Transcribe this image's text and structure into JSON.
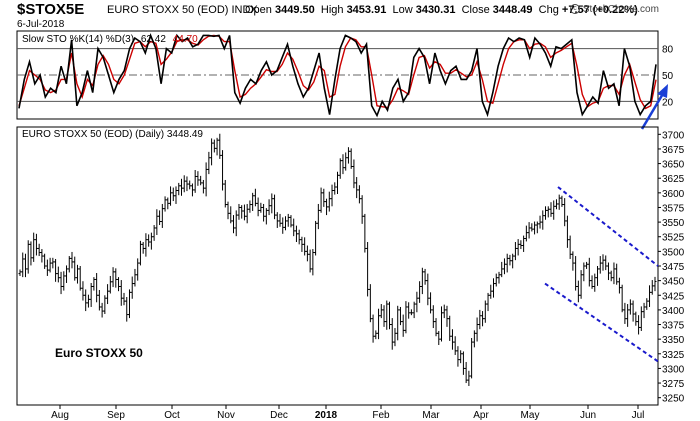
{
  "header": {
    "symbol": "$STOX5E",
    "name": "EURO STOXX 50 (EOD) INDX",
    "date": "6-Jul-2018",
    "open_label": "Open",
    "open": "3449.50",
    "high_label": "High",
    "high": "3453.91",
    "low_label": "Low",
    "low": "3430.31",
    "close_label": "Close",
    "close": "3448.49",
    "chg_label": "Chg",
    "chg": "+7.57 (+0.22%)",
    "watermark": "StockCharts.com"
  },
  "stoch_panel": {
    "legend_prefix": "Slow STO %K(14) %D(3)",
    "k_value": "62.42",
    "d_value": "44.70",
    "levels": [
      20,
      50,
      80
    ],
    "ylim": [
      0,
      100
    ],
    "colors": {
      "k": "#000000",
      "d": "#cc0000",
      "arrow": "#1a3fd6"
    }
  },
  "price_panel": {
    "legend": "EURO STOXX 50 (EOD) (Daily) 3448.49",
    "annotation": "Euro STOXX 50",
    "ylim": [
      3237.5,
      3712.5
    ],
    "yticks": [
      3250,
      3275,
      3300,
      3325,
      3350,
      3375,
      3400,
      3425,
      3450,
      3475,
      3500,
      3525,
      3550,
      3575,
      3600,
      3625,
      3650,
      3675,
      3700
    ],
    "months": [
      "Aug",
      "Sep",
      "Oct",
      "Nov",
      "Dec",
      "2018",
      "Feb",
      "Mar",
      "Apr",
      "May",
      "Jun",
      "Jul"
    ],
    "channel_color": "#1a1acc"
  },
  "chart_data": [
    {
      "type": "line",
      "title": "Slow STO %K(14) %D(3)",
      "ylim": [
        0,
        100
      ],
      "levels": [
        20,
        50,
        80
      ],
      "series": [
        {
          "name": "%K(14)",
          "values": [
            12,
            45,
            65,
            40,
            50,
            25,
            35,
            30,
            60,
            40,
            90,
            15,
            30,
            55,
            30,
            80,
            70,
            50,
            30,
            45,
            55,
            80,
            92,
            88,
            75,
            95,
            80,
            40,
            80,
            75,
            95,
            88,
            92,
            82,
            85,
            95,
            95,
            94,
            95,
            80,
            95,
            30,
            18,
            35,
            45,
            40,
            55,
            65,
            50,
            55,
            70,
            85,
            60,
            40,
            25,
            35,
            55,
            75,
            35,
            5,
            45,
            80,
            95,
            92,
            88,
            75,
            85,
            15,
            4,
            20,
            10,
            35,
            45,
            20,
            30,
            70,
            80,
            70,
            40,
            75,
            55,
            40,
            55,
            60,
            45,
            45,
            55,
            80,
            20,
            5,
            30,
            60,
            80,
            92,
            88,
            92,
            90,
            70,
            92,
            85,
            75,
            60,
            82,
            80,
            85,
            90,
            30,
            5,
            15,
            25,
            18,
            55,
            35,
            40,
            15,
            80,
            60,
            20,
            5,
            15,
            20,
            62
          ]
        },
        {
          "name": "%D(3)",
          "values": [
            15,
            35,
            55,
            50,
            45,
            33,
            30,
            33,
            45,
            45,
            75,
            40,
            25,
            45,
            38,
            62,
            72,
            62,
            45,
            40,
            50,
            68,
            86,
            88,
            82,
            88,
            86,
            62,
            68,
            76,
            88,
            90,
            90,
            86,
            84,
            90,
            94,
            95,
            94,
            88,
            88,
            55,
            25,
            28,
            35,
            40,
            48,
            56,
            54,
            54,
            62,
            75,
            68,
            54,
            38,
            33,
            42,
            60,
            55,
            25,
            28,
            60,
            82,
            92,
            90,
            82,
            82,
            50,
            15,
            14,
            13,
            22,
            35,
            32,
            28,
            50,
            70,
            72,
            58,
            65,
            62,
            52,
            52,
            56,
            52,
            48,
            50,
            65,
            45,
            20,
            18,
            40,
            62,
            80,
            88,
            90,
            90,
            80,
            85,
            86,
            82,
            70,
            75,
            78,
            82,
            86,
            60,
            28,
            14,
            18,
            20,
            35,
            38,
            38,
            28,
            50,
            62,
            42,
            22,
            12,
            15,
            44.7
          ]
        }
      ]
    },
    {
      "type": "bar",
      "title": "EURO STOXX 50 (EOD) (Daily) 3448.49",
      "subtitle": "OHLC bars",
      "ylim": [
        3237.5,
        3712.5
      ],
      "x": [
        "Aug",
        "Sep",
        "Oct",
        "Nov",
        "Dec",
        "2018",
        "Feb",
        "Mar",
        "Apr",
        "May",
        "Jun",
        "Jul"
      ],
      "closes": [
        3465,
        3487,
        3470,
        3512,
        3489,
        3520,
        3505,
        3498,
        3492,
        3475,
        3468,
        3480,
        3482,
        3462,
        3455,
        3440,
        3458,
        3470,
        3488,
        3482,
        3455,
        3470,
        3437,
        3425,
        3412,
        3418,
        3440,
        3452,
        3425,
        3405,
        3398,
        3420,
        3432,
        3448,
        3465,
        3452,
        3440,
        3420,
        3415,
        3392,
        3430,
        3445,
        3460,
        3480,
        3512,
        3505,
        3520,
        3516,
        3525,
        3540,
        3560,
        3551,
        3573,
        3588,
        3582,
        3600,
        3595,
        3604,
        3612,
        3608,
        3620,
        3615,
        3612,
        3605,
        3628,
        3622,
        3617,
        3608,
        3640,
        3660,
        3685,
        3676,
        3690,
        3664,
        3615,
        3580,
        3565,
        3552,
        3540,
        3562,
        3575,
        3569,
        3560,
        3572,
        3580,
        3595,
        3582,
        3570,
        3575,
        3560,
        3570,
        3578,
        3590,
        3562,
        3552,
        3548,
        3541,
        3552,
        3558,
        3545,
        3535,
        3530,
        3520,
        3512,
        3500,
        3495,
        3470,
        3498,
        3548,
        3570,
        3600,
        3585,
        3576,
        3590,
        3604,
        3610,
        3630,
        3655,
        3643,
        3660,
        3671,
        3645,
        3617,
        3605,
        3590,
        3560,
        3505,
        3435,
        3385,
        3355,
        3360,
        3390,
        3400,
        3380,
        3410,
        3375,
        3345,
        3360,
        3400,
        3380,
        3365,
        3405,
        3395,
        3395,
        3410,
        3420,
        3440,
        3465,
        3450,
        3420,
        3400,
        3380,
        3360,
        3350,
        3395,
        3400,
        3385,
        3355,
        3345,
        3330,
        3315,
        3325,
        3300,
        3280,
        3287,
        3345,
        3360,
        3375,
        3390,
        3385,
        3410,
        3425,
        3432,
        3445,
        3455,
        3460,
        3470,
        3478,
        3488,
        3484,
        3492,
        3505,
        3512,
        3510,
        3522,
        3532,
        3540,
        3538,
        3545,
        3547,
        3550,
        3561,
        3570,
        3572,
        3565,
        3577,
        3581,
        3591,
        3580,
        3552,
        3520,
        3495,
        3480,
        3440,
        3425,
        3460,
        3475,
        3478,
        3450,
        3440,
        3455,
        3470,
        3480,
        3485,
        3475,
        3463,
        3455,
        3470,
        3448,
        3438,
        3400,
        3385,
        3400,
        3410,
        3393,
        3380,
        3370,
        3397,
        3405,
        3415,
        3430,
        3441,
        3448.49
      ]
    }
  ]
}
